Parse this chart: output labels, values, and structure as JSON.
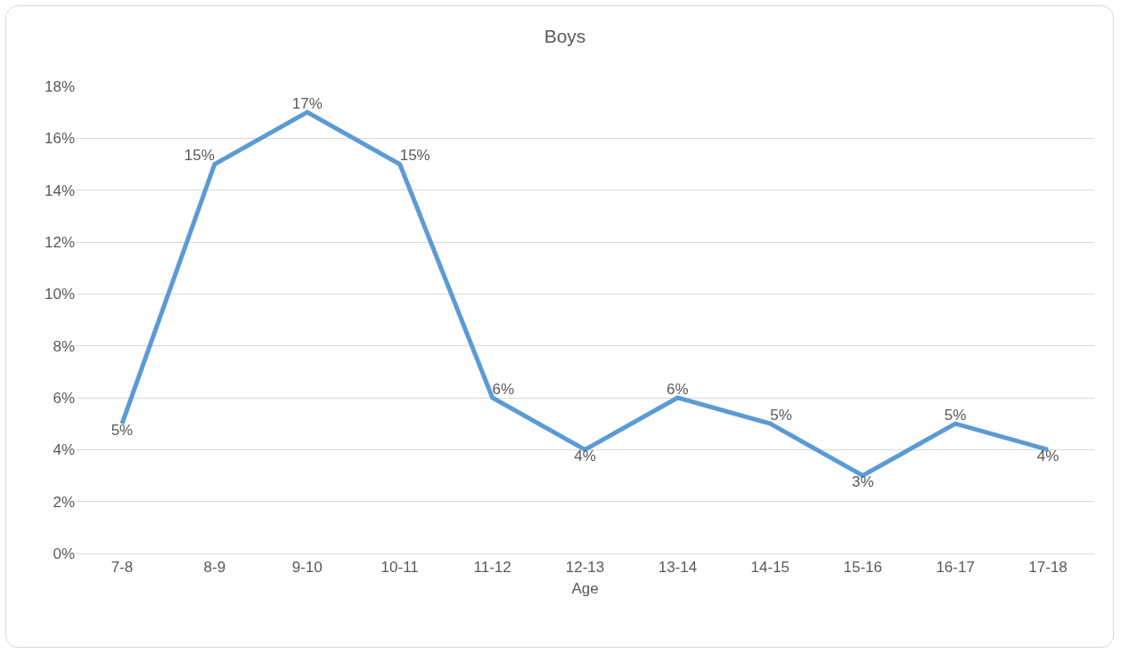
{
  "chart_data": {
    "type": "line",
    "title": "Boys",
    "xlabel": "Age",
    "categories": [
      "7-8",
      "8-9",
      "9-10",
      "10-11",
      "11-12",
      "12-13",
      "13-14",
      "14-15",
      "15-16",
      "16-17",
      "17-18"
    ],
    "series": [
      {
        "color": "#5b9bd5",
        "values": [
          5,
          15,
          17,
          15,
          6,
          4,
          6,
          5,
          3,
          5,
          4
        ],
        "value_labels": [
          "5%",
          "15%",
          "17%",
          "15%",
          "6%",
          "4%",
          "6%",
          "5%",
          "3%",
          "5%",
          "4%"
        ]
      }
    ],
    "ylim": [
      0,
      18
    ],
    "yticks": [
      {
        "value": 0,
        "label": "0%"
      },
      {
        "value": 2,
        "label": "2%"
      },
      {
        "value": 4,
        "label": "4%"
      },
      {
        "value": 6,
        "label": "6%"
      },
      {
        "value": 8,
        "label": "8%"
      },
      {
        "value": 10,
        "label": "10%"
      },
      {
        "value": 12,
        "label": "12%"
      },
      {
        "value": 14,
        "label": "14%"
      },
      {
        "value": 16,
        "label": "16%"
      },
      {
        "value": 18,
        "label": "18%"
      }
    ],
    "grid": "y",
    "legend": false,
    "marker": "none",
    "line_style": "solid"
  }
}
